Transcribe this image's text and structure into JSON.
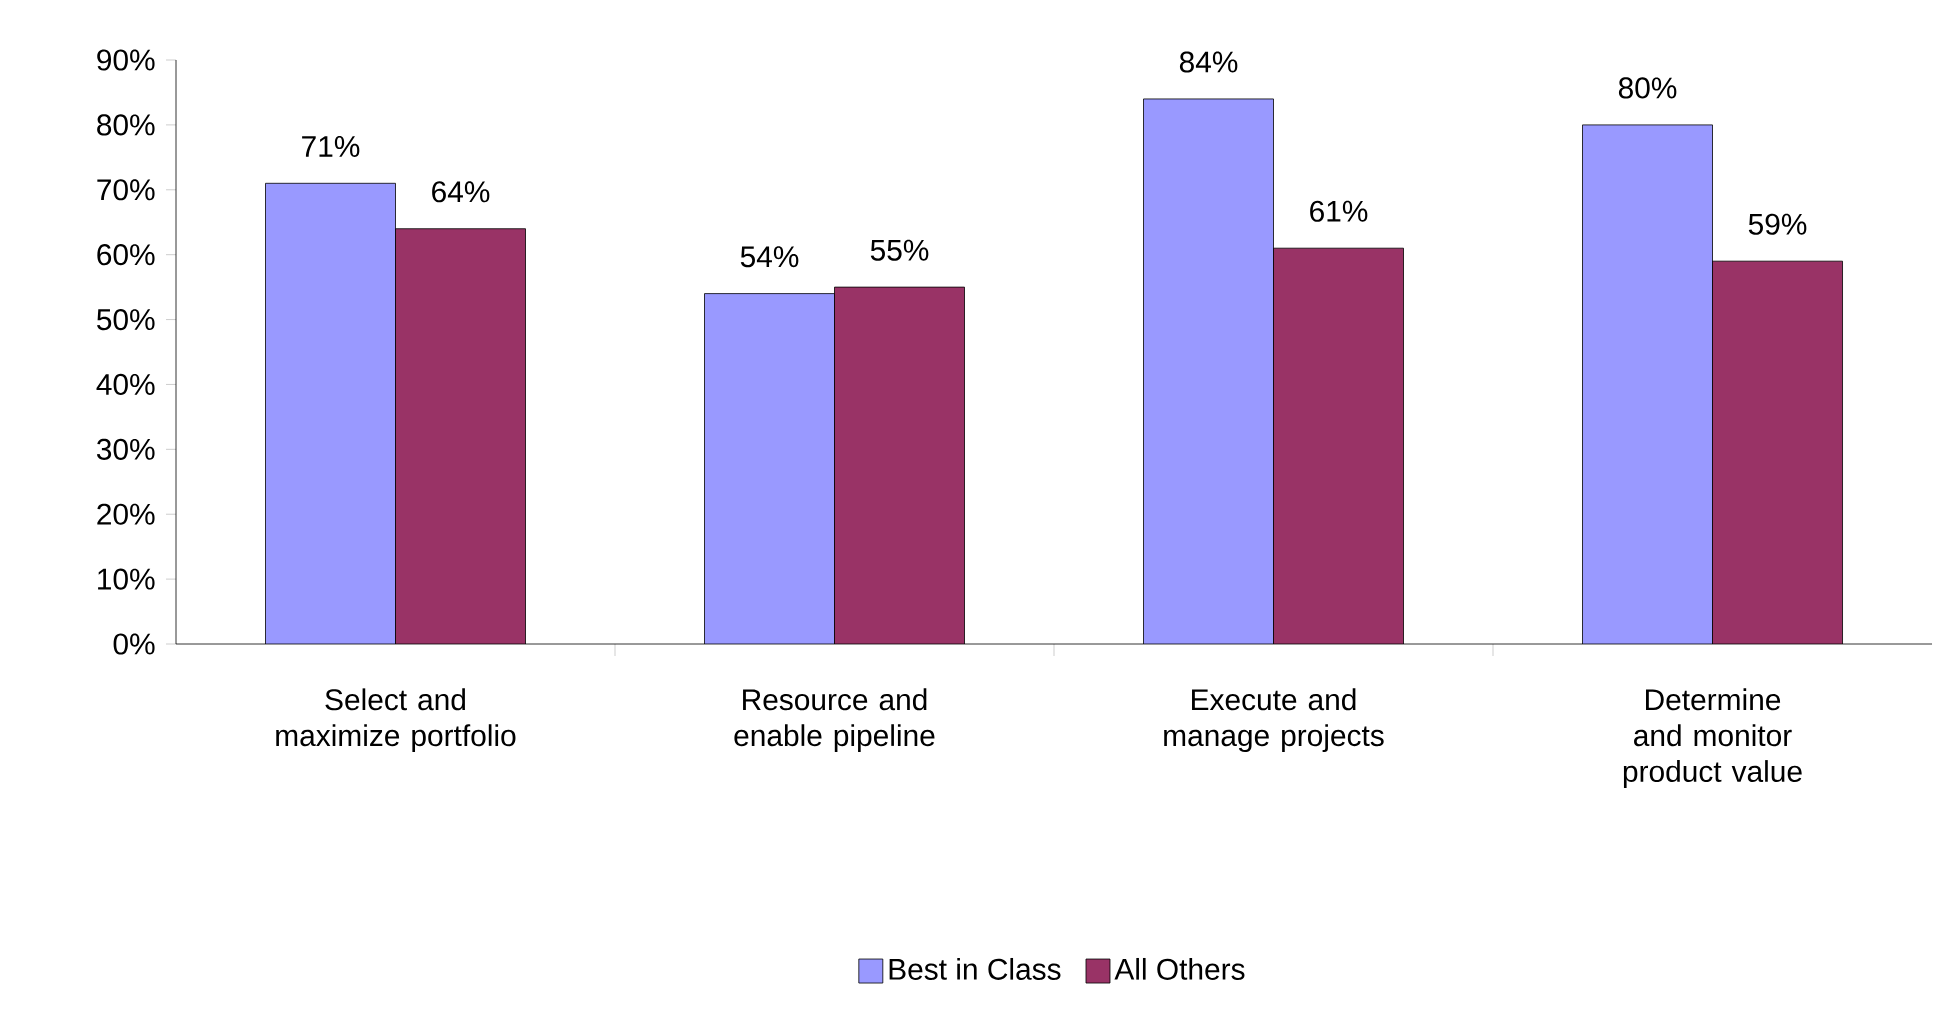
{
  "chart_data": {
    "type": "bar",
    "categories": [
      "Select and maximize portfolio",
      "Resource and enable pipeline",
      "Execute and manage projects",
      "Determine and monitor product value"
    ],
    "series": [
      {
        "name": "Best in Class",
        "color": "#9999ff",
        "values": [
          71,
          54,
          84,
          80
        ],
        "value_labels": [
          "71%",
          "54%",
          "84%",
          "80%"
        ]
      },
      {
        "name": "All Others",
        "color": "#993366",
        "values": [
          64,
          55,
          61,
          59
        ],
        "value_labels": [
          "64%",
          "55%",
          "61%",
          "59%"
        ]
      }
    ],
    "ylim": [
      0,
      90
    ],
    "yticks": [
      {
        "value": 0,
        "label": "0%"
      },
      {
        "value": 10,
        "label": "10%"
      },
      {
        "value": 20,
        "label": "20%"
      },
      {
        "value": 30,
        "label": "30%"
      },
      {
        "value": 40,
        "label": "40%"
      },
      {
        "value": 50,
        "label": "50%"
      },
      {
        "value": 60,
        "label": "60%"
      },
      {
        "value": 70,
        "label": "70%"
      },
      {
        "value": 80,
        "label": "80%"
      },
      {
        "value": 90,
        "label": "90%"
      }
    ],
    "legend": "bottom",
    "grid": false
  }
}
